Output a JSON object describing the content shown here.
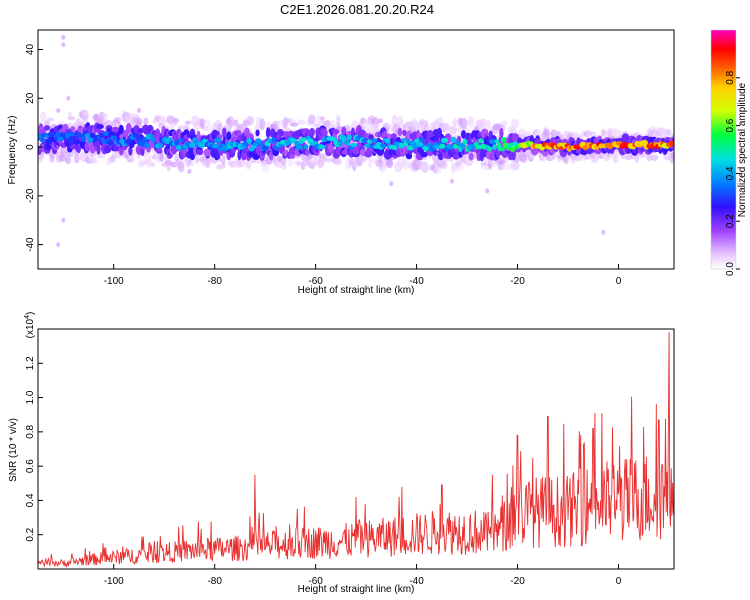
{
  "title": "C2E1.2026.081.20.20.R24",
  "chart_data": [
    {
      "type": "heatmap",
      "xlabel": "Height of straight line (km)",
      "ylabel": "Frequency (Hz)",
      "xlim": [
        -115,
        11
      ],
      "ylim": [
        -50,
        48
      ],
      "xticks": [
        -100,
        -80,
        -60,
        -40,
        -20,
        0
      ],
      "yticks": [
        -40,
        -20,
        0,
        20,
        40
      ],
      "colorbar": {
        "label": "Normalized spectral amplitude",
        "range": [
          0,
          1
        ],
        "ticks": [
          0.0,
          0.2,
          0.4,
          0.6,
          0.8
        ],
        "colors": [
          "#ffffff",
          "#e9c8ff",
          "#a040ff",
          "#3010ff",
          "#0080ff",
          "#00e0e0",
          "#00ff40",
          "#d0ff00",
          "#ffd000",
          "#ff6000",
          "#ff0000",
          "#ff00c0"
        ]
      },
      "ridge": {
        "center_hz": [
          [
            -115,
            3
          ],
          [
            -105,
            4
          ],
          [
            -95,
            3
          ],
          [
            -90,
            2
          ],
          [
            -80,
            1
          ],
          [
            -70,
            1
          ],
          [
            -60,
            2
          ],
          [
            -50,
            2
          ],
          [
            -40,
            1
          ],
          [
            -30,
            1
          ],
          [
            -20,
            1
          ],
          [
            -10,
            0
          ],
          [
            0,
            1
          ],
          [
            11,
            1
          ]
        ],
        "peak_amplitude": [
          [
            -115,
            0.35
          ],
          [
            -100,
            0.4
          ],
          [
            -80,
            0.42
          ],
          [
            -60,
            0.45
          ],
          [
            -40,
            0.45
          ],
          [
            -25,
            0.5
          ],
          [
            -20,
            0.6
          ],
          [
            -15,
            0.85
          ],
          [
            -5,
            0.9
          ],
          [
            0,
            0.9
          ],
          [
            11,
            0.85
          ]
        ]
      }
    },
    {
      "type": "line",
      "xlabel": "Height of straight line (km)",
      "ylabel": "SNR (10 * v/v)",
      "y_multiplier_label": "(x10",
      "y_multiplier_exp": "4",
      "y_multiplier_close": ")",
      "xlim": [
        -115,
        11
      ],
      "ylim": [
        0,
        1.4
      ],
      "xticks": [
        -100,
        -80,
        -60,
        -40,
        -20,
        0
      ],
      "yticks": [
        0.2,
        0.4,
        0.6,
        0.8,
        1.0,
        1.2
      ],
      "series": [
        {
          "name": "SNR",
          "color": "#e83030",
          "envelope": [
            [
              -115,
              0.06
            ],
            [
              -110,
              0.05
            ],
            [
              -105,
              0.08
            ],
            [
              -100,
              0.1
            ],
            [
              -95,
              0.12
            ],
            [
              -90,
              0.14
            ],
            [
              -85,
              0.16
            ],
            [
              -80,
              0.17
            ],
            [
              -75,
              0.18
            ],
            [
              -70,
              0.2
            ],
            [
              -65,
              0.22
            ],
            [
              -60,
              0.23
            ],
            [
              -55,
              0.24
            ],
            [
              -50,
              0.26
            ],
            [
              -45,
              0.28
            ],
            [
              -40,
              0.3
            ],
            [
              -35,
              0.32
            ],
            [
              -30,
              0.33
            ],
            [
              -25,
              0.3
            ],
            [
              -23,
              0.35
            ],
            [
              -20,
              0.48
            ],
            [
              -15,
              0.5
            ],
            [
              -10,
              0.5
            ],
            [
              -5,
              0.57
            ],
            [
              0,
              0.59
            ],
            [
              5,
              0.62
            ],
            [
              9,
              0.65
            ],
            [
              11,
              0.8
            ]
          ],
          "spikes": [
            [
              -72,
              0.55
            ],
            [
              -52,
              0.42
            ],
            [
              -35,
              0.49
            ],
            [
              -25,
              0.55
            ],
            [
              -20,
              0.78
            ],
            [
              -14,
              0.89
            ],
            [
              -5,
              0.82
            ],
            [
              5,
              0.83
            ],
            [
              8,
              0.87
            ],
            [
              10,
              1.38
            ]
          ]
        }
      ]
    }
  ]
}
